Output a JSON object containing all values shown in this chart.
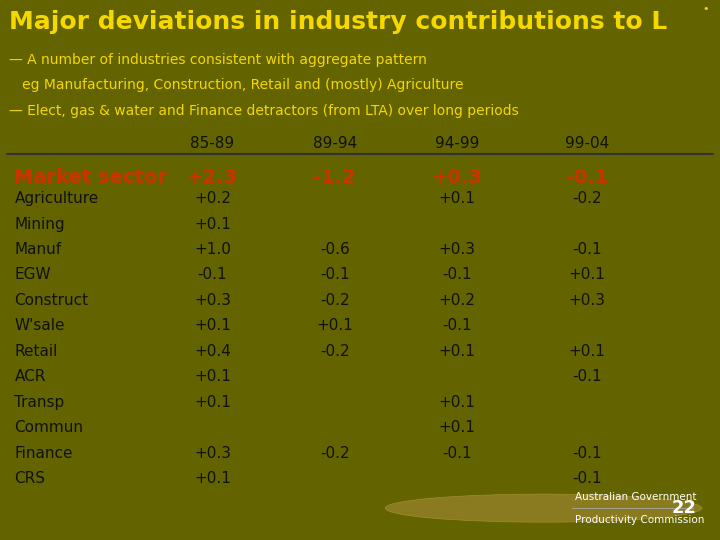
{
  "title": "Major deviations in industry contributions to L",
  "subtitle_lines": [
    "— A number of industries consistent with aggregate pattern",
    "   eg Manufacturing, Construction, Retail and (mostly) Agriculture",
    "— Elect, gas & water and Finance detractors (from LTA) over long periods"
  ],
  "header_bg": "#636300",
  "table_bg": "#f5f2e8",
  "footer_bg": "#636300",
  "title_color": "#f5d800",
  "subtitle_color": "#f5d800",
  "col_headers": [
    "85-89",
    "89-94",
    "94-99",
    "99-04"
  ],
  "market_sector_label": "Market sector",
  "market_sector_values": [
    "+2.3",
    "-1.2",
    "+0.3",
    "-0.1"
  ],
  "rows": [
    {
      "label": "Agriculture",
      "values": [
        "+0.2",
        "",
        "+0.1",
        "-0.2"
      ]
    },
    {
      "label": "Mining",
      "values": [
        "+0.1",
        "",
        "",
        ""
      ]
    },
    {
      "label": "Manuf",
      "values": [
        "+1.0",
        "-0.6",
        "+0.3",
        "-0.1"
      ]
    },
    {
      "label": "EGW",
      "values": [
        "-0.1",
        "-0.1",
        "-0.1",
        "+0.1"
      ]
    },
    {
      "label": "Construct",
      "values": [
        "+0.3",
        "-0.2",
        "+0.2",
        "+0.3"
      ]
    },
    {
      "label": "W'sale",
      "values": [
        "+0.1",
        "+0.1",
        "-0.1",
        ""
      ]
    },
    {
      "label": "Retail",
      "values": [
        "+0.4",
        "-0.2",
        "+0.1",
        "+0.1"
      ]
    },
    {
      "label": "ACR",
      "values": [
        "+0.1",
        "",
        "",
        "-0.1"
      ]
    },
    {
      "label": "Transp",
      "values": [
        "+0.1",
        "",
        "+0.1",
        ""
      ]
    },
    {
      "label": "Commun",
      "values": [
        "",
        "",
        "+0.1",
        ""
      ]
    },
    {
      "label": "Finance",
      "values": [
        "+0.3",
        "-0.2",
        "-0.1",
        "-0.1"
      ]
    },
    {
      "label": "CRS",
      "values": [
        "+0.1",
        "",
        "",
        "-0.1"
      ]
    }
  ],
  "header_label_color": "#cc3300",
  "header_value_color": "#cc3300",
  "row_label_color": "#111111",
  "row_value_color": "#111111",
  "col_header_color": "#111111",
  "separator_color": "#333333",
  "page_number": "22",
  "dot_color": "#f5d800",
  "footer_text1": "Australian Government",
  "footer_text2": "Productivity Commission",
  "footer_text_color": "#ffffff",
  "title_fontsize": 18,
  "subtitle_fontsize": 10,
  "col_header_fontsize": 11,
  "ms_fontsize": 14,
  "row_fontsize": 11
}
